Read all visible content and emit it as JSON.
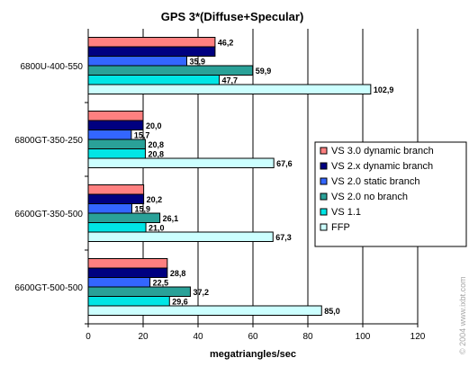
{
  "chart_data": {
    "type": "bar",
    "orientation": "horizontal",
    "title": "GPS 3*(Diffuse+Specular)",
    "xlabel": "megatriangles/sec",
    "ylabel": "",
    "xlim": [
      0,
      120
    ],
    "xticks": [
      "0",
      "20",
      "40",
      "60",
      "80",
      "100",
      "120"
    ],
    "grid": true,
    "legend_position": "right",
    "categories": [
      "6800U-400-550",
      "6800GT-350-250",
      "6600GT-350-500",
      "6600GT-500-500"
    ],
    "series": [
      {
        "name": "VS 3.0 dynamic branch",
        "color": "#ff8080",
        "values": [
          46.2,
          20.0,
          20.2,
          28.8
        ],
        "labels": [
          "46,2",
          "20,0",
          "20,2",
          "28,8"
        ],
        "show_label": [
          true,
          false,
          false,
          false
        ]
      },
      {
        "name": "VS 2.x dynamic branch",
        "color": "#000080",
        "values": [
          46.2,
          20.0,
          20.2,
          28.8
        ],
        "labels": [
          "46,2",
          "20,0",
          "20,2",
          "28,8"
        ],
        "show_label": [
          false,
          true,
          true,
          true
        ]
      },
      {
        "name": "VS 2.0 static branch",
        "color": "#3366ff",
        "values": [
          35.9,
          15.7,
          15.9,
          22.5
        ],
        "labels": [
          "35,9",
          "15,7",
          "15,9",
          "22,5"
        ],
        "show_label": [
          true,
          true,
          true,
          true
        ]
      },
      {
        "name": "VS 2.0 no branch",
        "color": "#2aa198",
        "values": [
          59.9,
          20.8,
          26.1,
          37.2
        ],
        "labels": [
          "59,9",
          "20,8",
          "26,1",
          "37,2"
        ],
        "show_label": [
          true,
          true,
          true,
          true
        ]
      },
      {
        "name": "VS 1.1",
        "color": "#00e5e5",
        "values": [
          47.7,
          20.8,
          21.0,
          29.6
        ],
        "labels": [
          "47,7",
          "20,8",
          "21,0",
          "29,6"
        ],
        "show_label": [
          true,
          true,
          true,
          true
        ]
      },
      {
        "name": "FFP",
        "color": "#ccffff",
        "values": [
          102.9,
          67.6,
          67.3,
          85.0
        ],
        "labels": [
          "102,9",
          "67,6",
          "67,3",
          "85,0"
        ],
        "show_label": [
          true,
          true,
          true,
          true
        ]
      }
    ]
  },
  "watermark": "© 2004 www.ixbt.com"
}
